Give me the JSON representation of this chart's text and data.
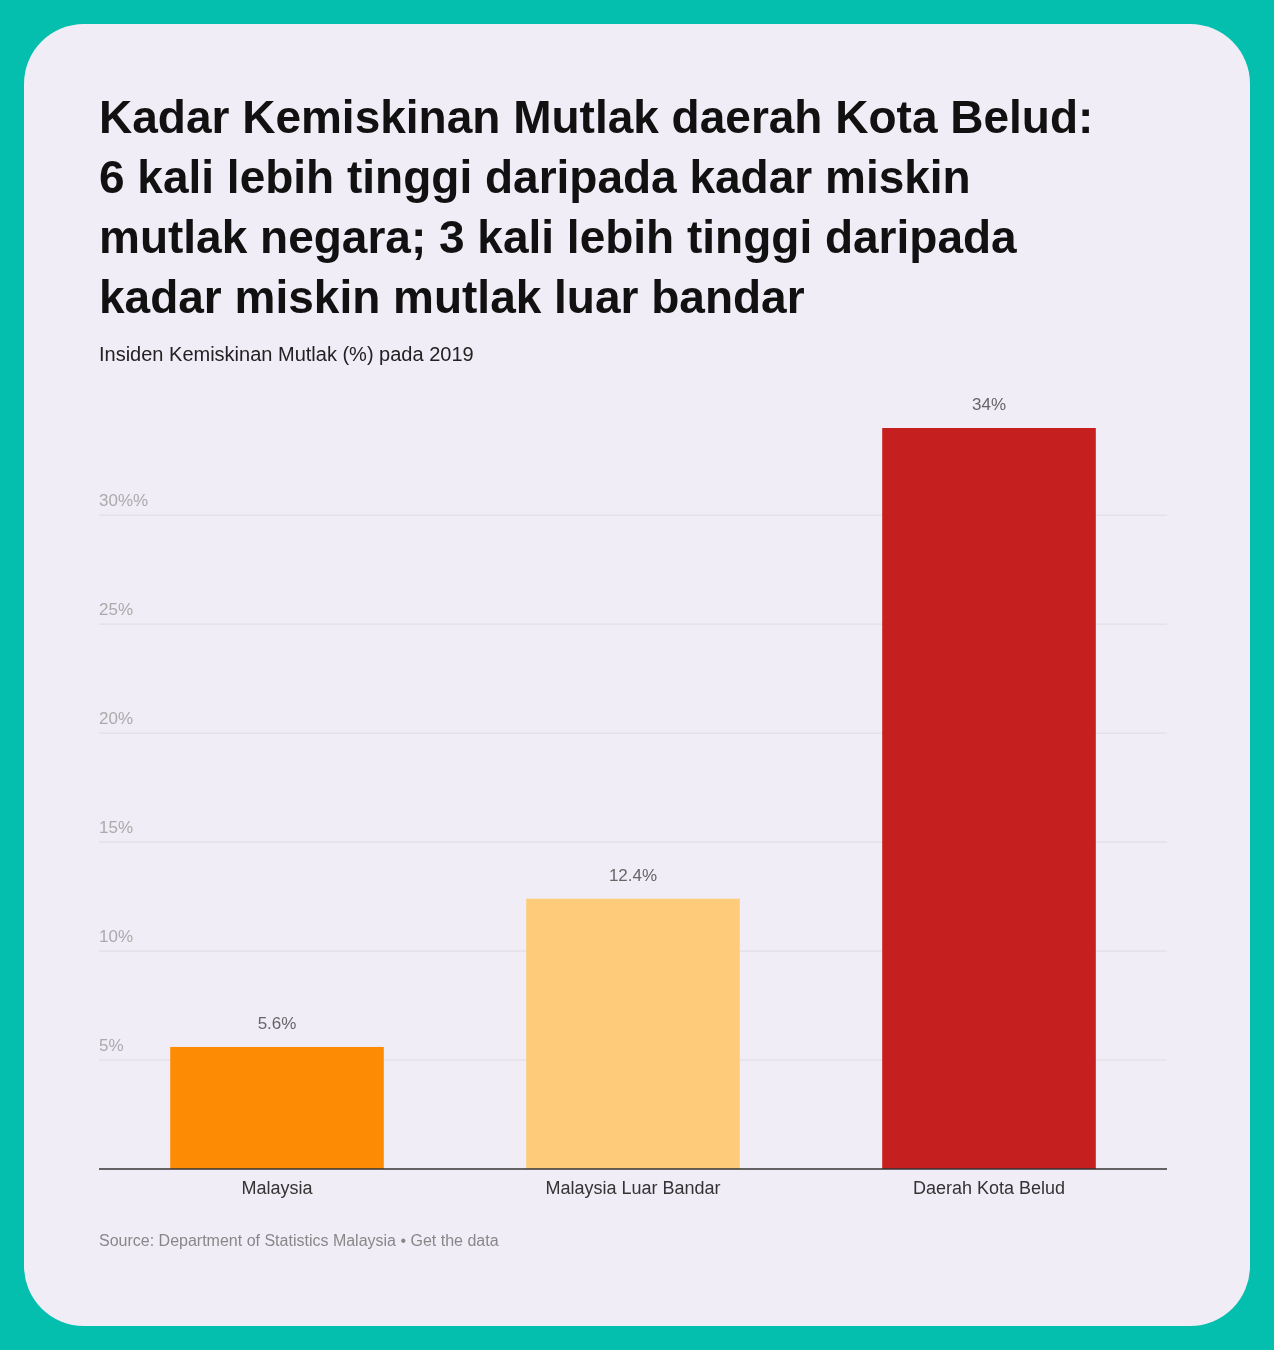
{
  "chart_data": {
    "type": "bar",
    "title": "Kadar Kemiskinan Mutlak daerah Kota Belud: 6 kali lebih tinggi daripada kadar miskin mutlak negara; 3 kali lebih tinggi daripada kadar miskin mutlak luar bandar",
    "subtitle": "Insiden Kemiskinan Mutlak (%) pada 2019",
    "categories": [
      "Malaysia",
      "Malaysia Luar Bandar",
      "Daerah Kota Belud"
    ],
    "values": [
      5.6,
      12.4,
      34
    ],
    "colors": [
      "#fd8c04",
      "#fecb7a",
      "#c61f1f"
    ],
    "value_labels": [
      "5.6%",
      "12.4%",
      "34%"
    ],
    "ylim": [
      0,
      34
    ],
    "yticks": [
      {
        "value": 5,
        "label": "5%"
      },
      {
        "value": 10,
        "label": "10%"
      },
      {
        "value": 15,
        "label": "15%"
      },
      {
        "value": 20,
        "label": "20%"
      },
      {
        "value": 25,
        "label": "25%"
      },
      {
        "value": 30,
        "label": "30%%"
      }
    ],
    "grid": "y",
    "annotations": [
      "Source: Department of Statistics Malaysia • Get the data"
    ]
  }
}
